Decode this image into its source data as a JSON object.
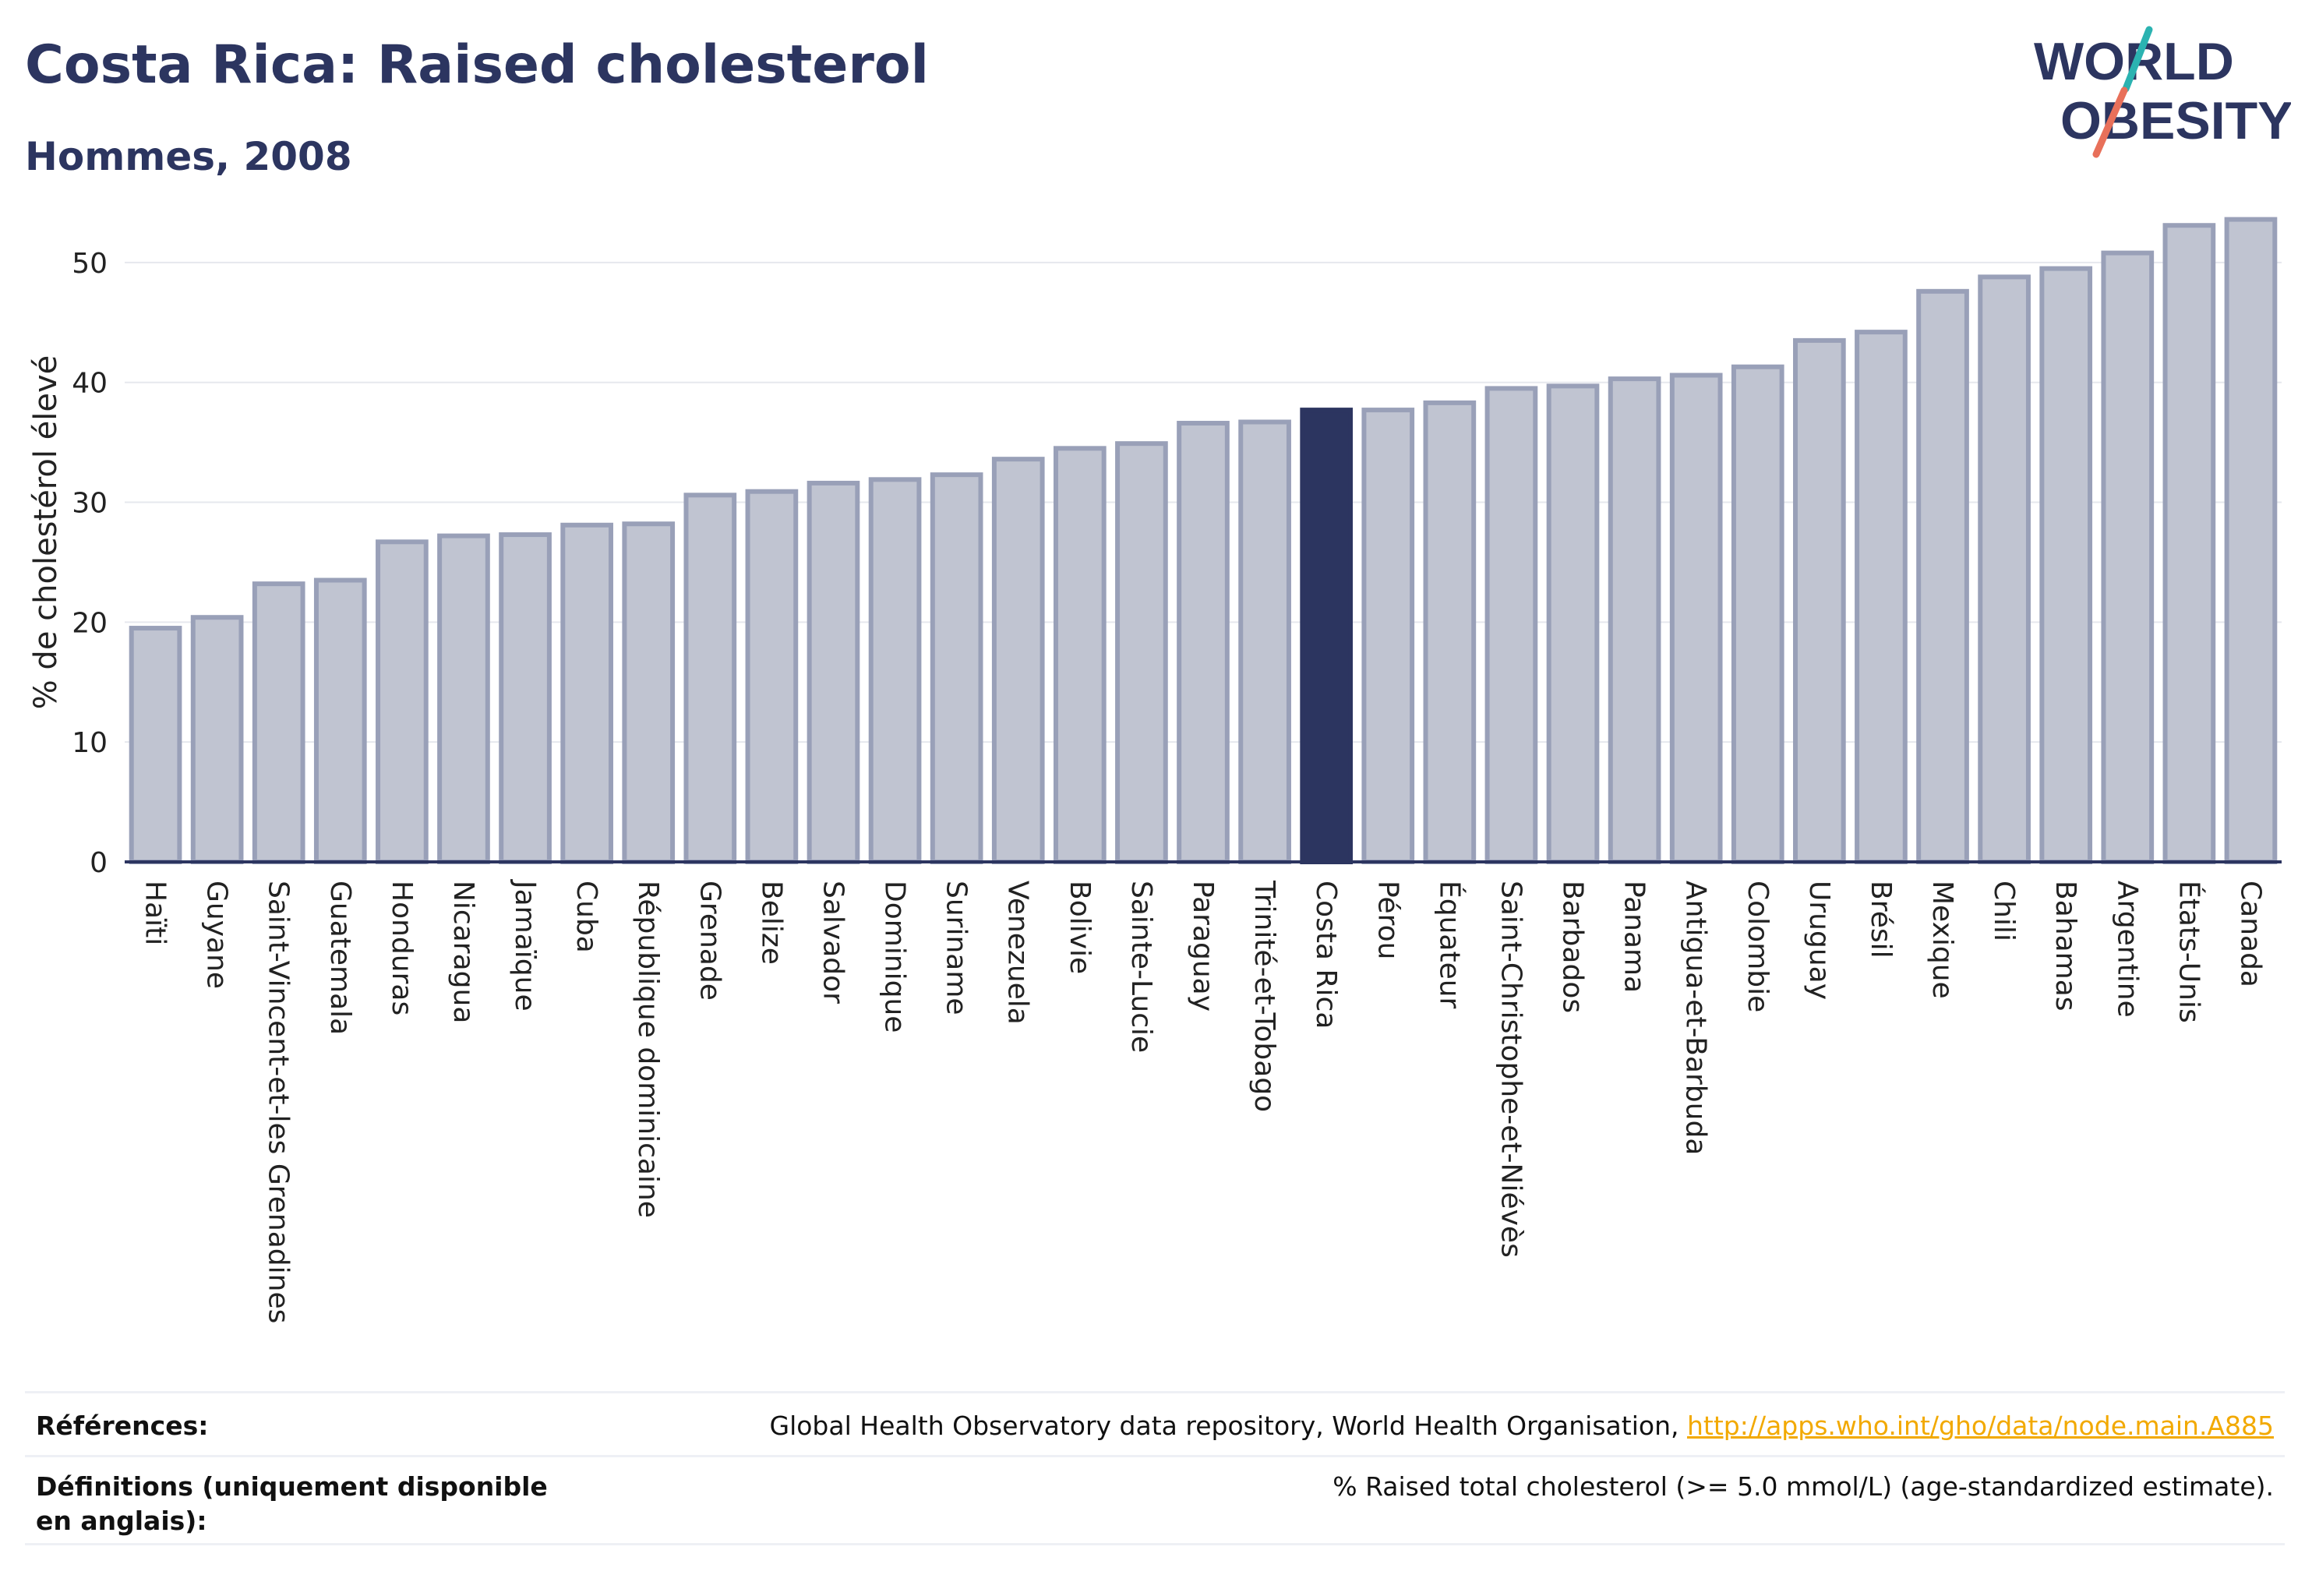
{
  "header": {
    "title": "Costa Rica: Raised cholesterol",
    "subtitle": "Hommes, 2008"
  },
  "logo": {
    "line1": "WORLD",
    "line2": "OBESITY",
    "colors": {
      "text": "#2c3560",
      "slash_teal": "#2bb3b1",
      "slash_coral": "#e8705a"
    }
  },
  "chart_data": {
    "type": "bar",
    "ylabel": "% de cholestérol élevé",
    "xlabel": "",
    "ylim": [
      0,
      55
    ],
    "yticks": [
      0,
      10,
      20,
      30,
      40,
      50
    ],
    "grid": true,
    "highlight": "Costa Rica",
    "colors": {
      "bar": "#c0c4d1",
      "bar_edge": "#99a0b8",
      "highlight": "#2c3560",
      "axis": "#2c3560",
      "grid": "#e6e8ee"
    },
    "categories": [
      "Haïti",
      "Guyane",
      "Saint-Vincent-et-les Grenadines",
      "Guatemala",
      "Honduras",
      "Nicaragua",
      "Jamaïque",
      "Cuba",
      "République dominicaine",
      "Grenade",
      "Belize",
      "Salvador",
      "Dominique",
      "Suriname",
      "Venezuela",
      "Bolivie",
      "Sainte-Lucie",
      "Paraguay",
      "Trinité-et-Tobago",
      "Costa Rica",
      "Pérou",
      "Équateur",
      "Saint-Christophe-et-Niévès",
      "Barbados",
      "Panama",
      "Antigua-et-Barbuda",
      "Colombie",
      "Uruguay",
      "Brésil",
      "Mexique",
      "Chili",
      "Bahamas",
      "Argentine",
      "États-Unis",
      "Canada"
    ],
    "values": [
      19.5,
      20.4,
      23.2,
      23.5,
      26.7,
      27.2,
      27.3,
      28.1,
      28.2,
      30.6,
      30.9,
      31.6,
      31.9,
      32.3,
      33.6,
      34.5,
      34.9,
      36.6,
      36.7,
      37.7,
      37.7,
      38.3,
      39.5,
      39.7,
      40.3,
      40.6,
      41.3,
      43.5,
      44.2,
      47.6,
      48.8,
      49.5,
      50.8,
      53.1,
      53.6
    ]
  },
  "footer": {
    "references_label": "Références:",
    "references_text": "Global Health Observatory data repository, World Health Organisation,",
    "references_link": "http://apps.who.int/gho/data/node.main.A885",
    "definitions_label": "Définitions (uniquement disponible en anglais):",
    "definitions_text": "% Raised total cholesterol (>= 5.0 mmol/L) (age-standardized estimate)."
  }
}
